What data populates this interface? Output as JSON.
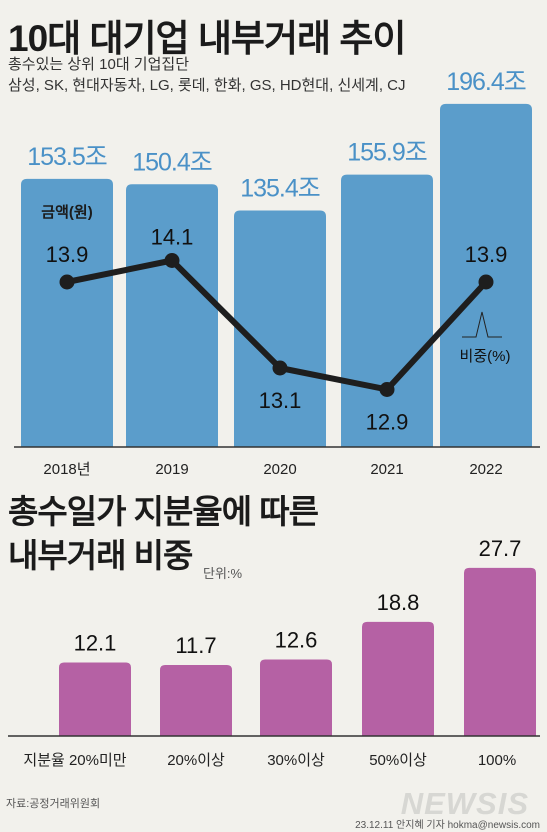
{
  "title1": "10대 대기업 내부거래 추이",
  "subtitle1_line1": "총수있는 상위 10대 기업집단",
  "subtitle1_line2": "삼성, SK, 현대자동차, LG, 롯데, 한화, GS, HD현대, 신세계, CJ",
  "title2_line1": "총수일가 지분율에 따른",
  "title2_line2": "내부거래 비중",
  "unit2": "단위:%",
  "source": "자료:공정거래위원회",
  "credit": "23.12.11 안지혜 기자 hokma@newsis.com",
  "logo": "NEWSIS",
  "colors": {
    "bar_blue": "#5b9dcb",
    "label_blue": "#4a91c7",
    "line": "#1e1e1e",
    "bar_purple": "#b561a4",
    "axis": "#333333"
  },
  "chart_data": [
    {
      "type": "bar",
      "categories": [
        "2018년",
        "2019",
        "2020",
        "2021",
        "2022"
      ],
      "series": [
        {
          "name": "금액(원)",
          "values": [
            153.5,
            150.4,
            135.4,
            155.9,
            196.4
          ],
          "value_labels": [
            "153.5조",
            "150.4조",
            "135.4조",
            "155.9조",
            "196.4조"
          ]
        },
        {
          "name": "비중(%)",
          "type": "line",
          "values": [
            13.9,
            14.1,
            13.1,
            12.9,
            13.9
          ]
        }
      ]
    },
    {
      "type": "bar",
      "categories": [
        "지분율 20%미만",
        "20%이상",
        "30%이상",
        "50%이상",
        "100%"
      ],
      "values": [
        12.1,
        11.7,
        12.6,
        18.8,
        27.7
      ]
    }
  ]
}
